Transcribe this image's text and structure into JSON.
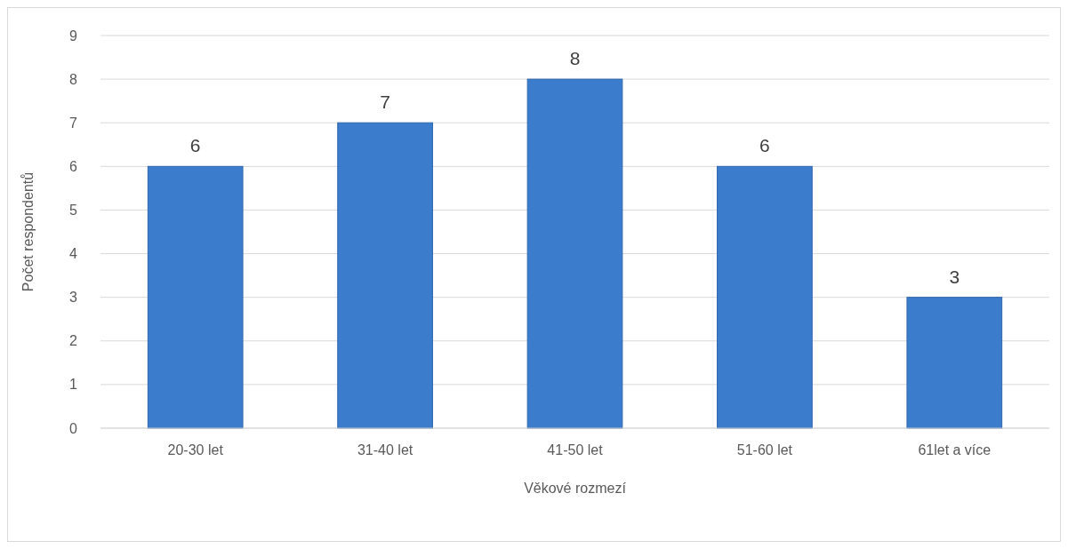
{
  "chart_data": {
    "type": "bar",
    "xlabel": "Věkové rozmezí",
    "ylabel": "Počet respondentů",
    "categories": [
      "20-30 let",
      "31-40 let",
      "41-50 let",
      "51-60 let",
      "61let a více"
    ],
    "values": [
      6,
      7,
      8,
      6,
      3
    ],
    "color": "#3c7ccc",
    "ylim": [
      0,
      9
    ],
    "yticks": [
      0,
      1,
      2,
      3,
      4,
      5,
      6,
      7,
      8,
      9
    ],
    "grid": "y",
    "data_labels": true
  }
}
